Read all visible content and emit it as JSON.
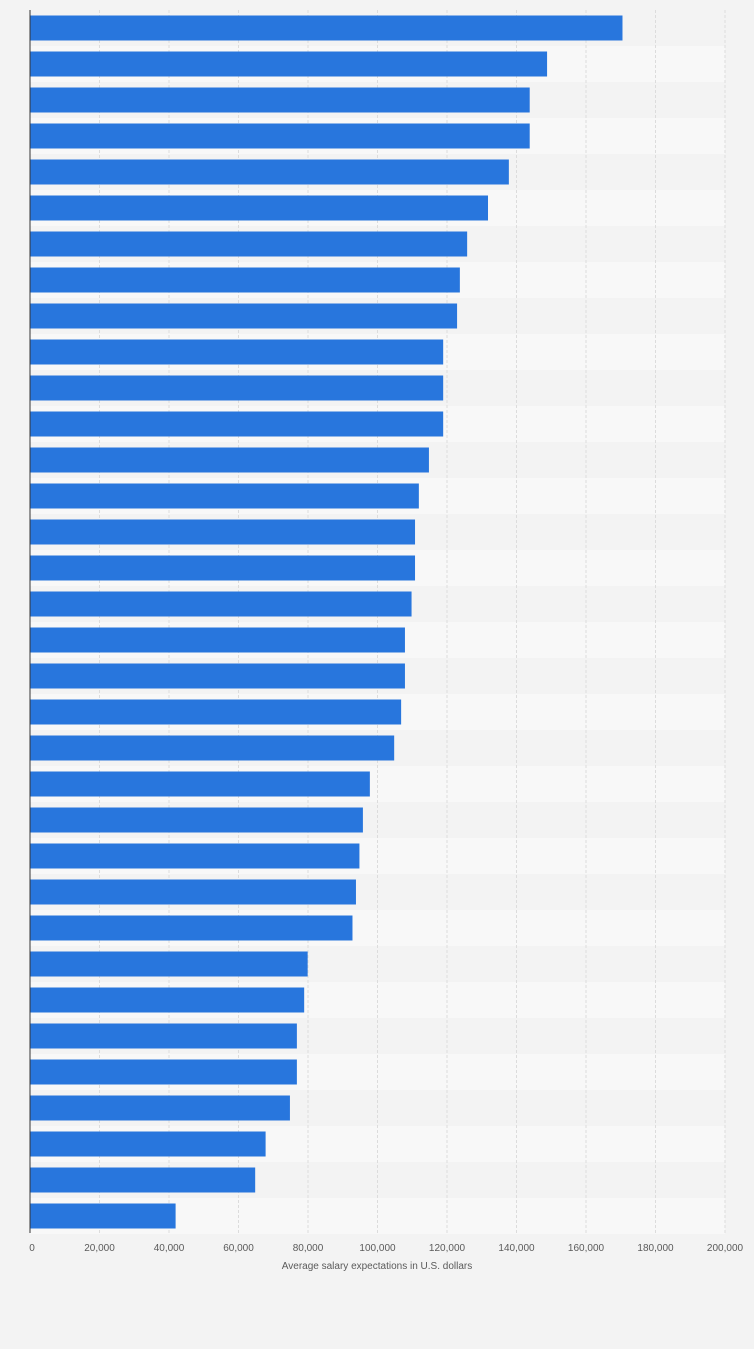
{
  "chart_data": {
    "type": "bar",
    "orientation": "horizontal",
    "title": "",
    "ylabel": "",
    "xlabel": "Average salary expectations in U.S. dollars",
    "xlim": [
      0,
      200000
    ],
    "x_ticks": [
      0,
      20000,
      40000,
      60000,
      80000,
      100000,
      120000,
      140000,
      160000,
      180000,
      200000
    ],
    "x_tick_labels": [
      "0",
      "20,000",
      "40,000",
      "60,000",
      "80,000",
      "100,000",
      "120,000",
      "140,000",
      "160,000",
      "180,000",
      "200,000"
    ],
    "category_labels_visible": false,
    "grid": true,
    "legend": "none",
    "bar_color": "#2876dd",
    "band_colors": [
      "#f3f3f3",
      "#f8f8f8"
    ],
    "values": [
      170500,
      148800,
      143800,
      143800,
      137800,
      131800,
      125800,
      123700,
      122900,
      118900,
      118900,
      118900,
      114800,
      111900,
      110800,
      110800,
      109800,
      107900,
      107900,
      106800,
      104800,
      97800,
      95800,
      94800,
      93800,
      92800,
      79900,
      78900,
      76800,
      76800,
      74800,
      67800,
      64800,
      41900
    ]
  }
}
